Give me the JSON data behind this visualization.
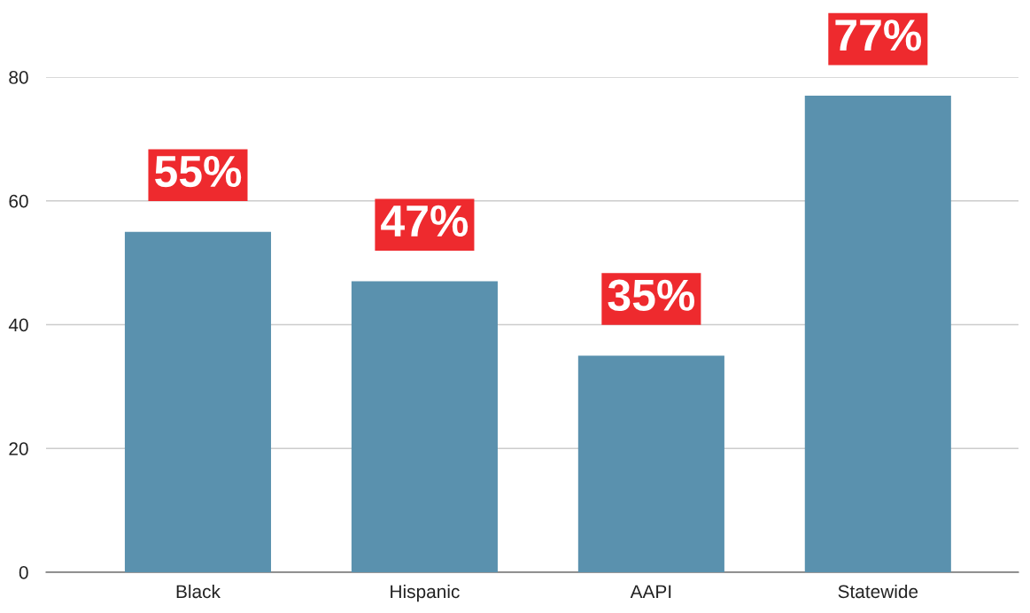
{
  "chart_data": {
    "type": "bar",
    "categories": [
      "Black",
      "Hispanic",
      "AAPI",
      "Statewide"
    ],
    "values": [
      55,
      47,
      35,
      77
    ],
    "color": "#5a91ae",
    "value_labels": [
      "55%",
      "47%",
      "35%",
      "77%"
    ],
    "ylim": [
      0,
      80
    ],
    "yticks": [
      0,
      20,
      40,
      60,
      80
    ],
    "grid": "y"
  }
}
